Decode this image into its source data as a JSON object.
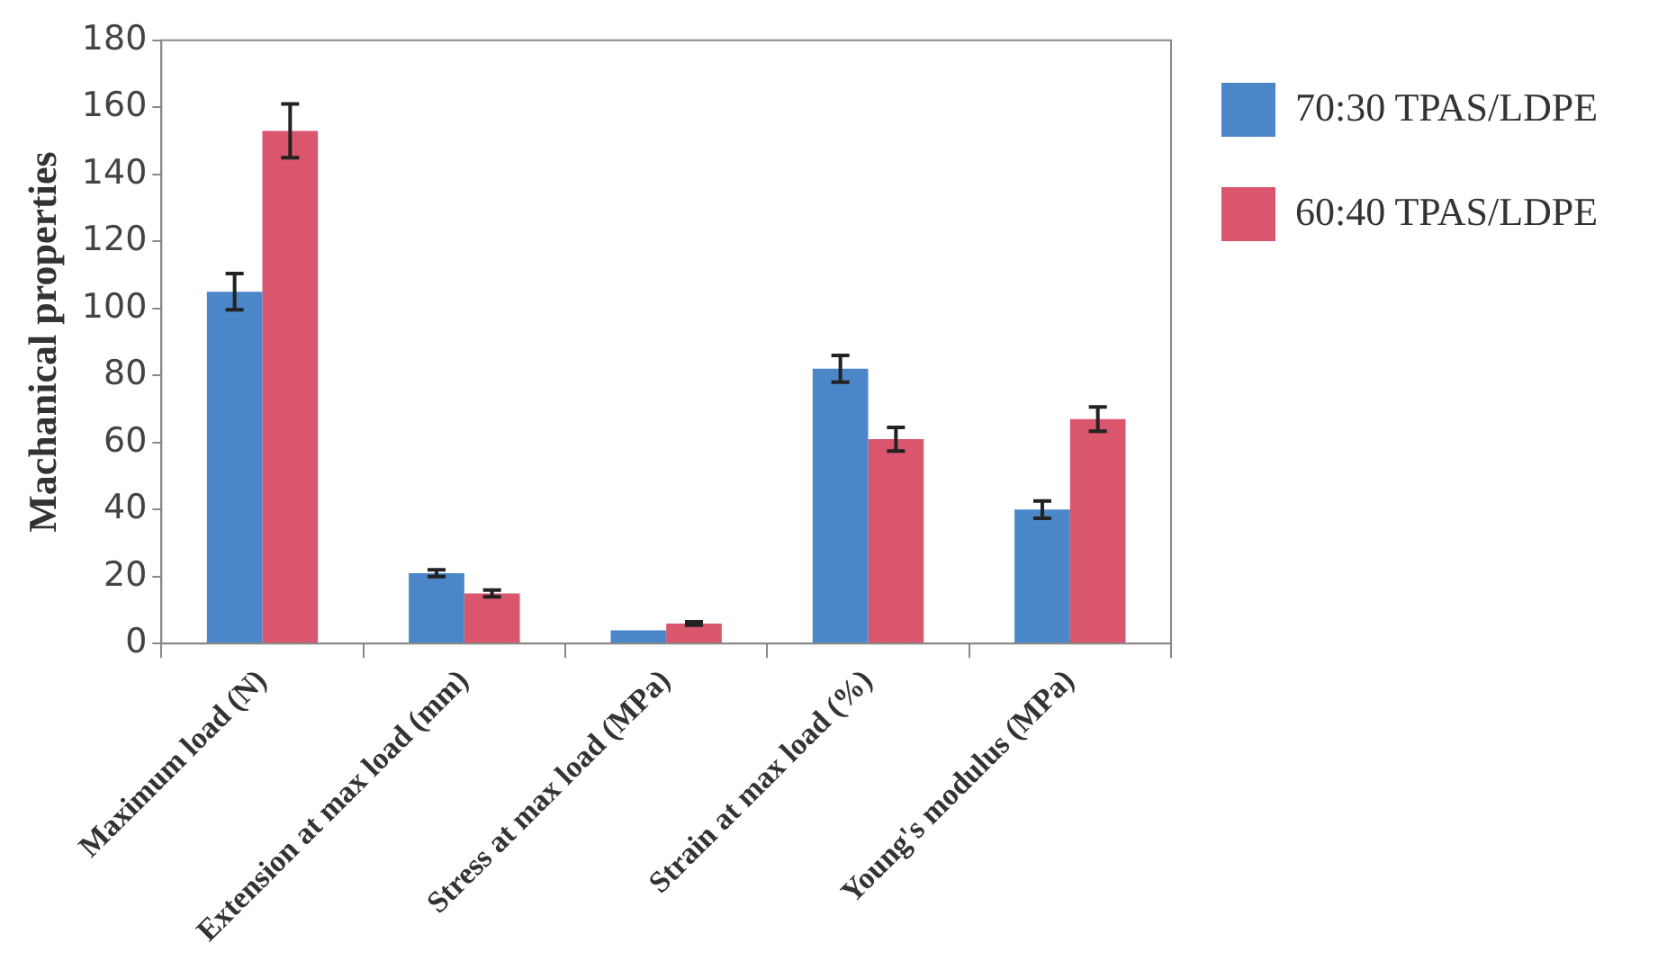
{
  "chart_data": {
    "type": "bar",
    "ylabel": "Machanical properties",
    "categories": [
      "Maximum load (N)",
      "Extension at max load (mm)",
      "Stress at max load (MPa)",
      "Strain at max load (%)",
      "Young's modulus (MPa)"
    ],
    "series": [
      {
        "name": "70:30 TPAS/LDPE",
        "color": "#4a86c8",
        "values": [
          105,
          21,
          4,
          82,
          40
        ],
        "errors": [
          5.4,
          1,
          null,
          4,
          2.6
        ]
      },
      {
        "name": "60:40 TPAS/LDPE",
        "color": "#d9566c",
        "values": [
          153,
          15,
          6,
          61,
          67
        ],
        "errors": [
          8,
          1,
          0.5,
          3.5,
          3.6
        ]
      }
    ],
    "ylim": [
      0,
      180
    ],
    "yticks": [
      0,
      20,
      40,
      60,
      80,
      100,
      120,
      140,
      160,
      180
    ],
    "grid": false,
    "legend": "top right"
  }
}
